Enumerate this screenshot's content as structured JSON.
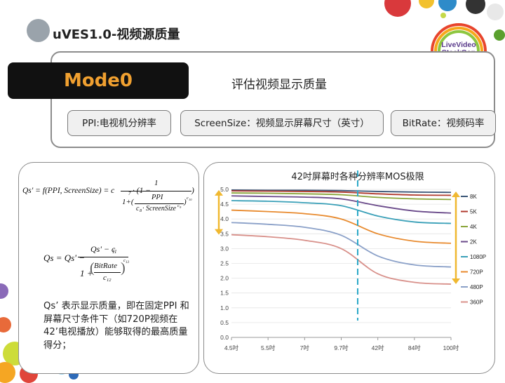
{
  "slide": {
    "title": "uVES1.0-视频源质量"
  },
  "mode": {
    "label": "Mode0",
    "description": "评估视频显示质量"
  },
  "tags": [
    {
      "text": "PPI:电视机分辨率"
    },
    {
      "text": "ScreenSize：视频显示屏幕尺寸（英寸）"
    },
    {
      "text": "BitRate：视频码率"
    }
  ],
  "formula1": {
    "lhs": "Qs' = f(PPI, ScreenSize) = c",
    "lhs_sub": "7",
    "mult": " · (1 −",
    "num": "1",
    "inner_num": "PPI",
    "inner_den_c": "c",
    "inner_den_sub": "8",
    "inner_den_rest": " · ScreenSize",
    "inner_den_sup": "c",
    "inner_den_sup_sub": "9",
    "one_plus": "1+(",
    "close_inner": ")",
    "outer_sup": "c",
    "outer_sup_sub": "10",
    "close": ")"
  },
  "formula2": {
    "lhs": "Qs = Qs' −",
    "num": "Qs' − c",
    "num_sub": "11",
    "den_one": "1 +",
    "frac_num": "BitRate",
    "frac_den": "c",
    "frac_den_sub": "12",
    "sup": "c",
    "sup_sub": "13"
  },
  "description": "Qs’  表示显示质量，即在固定PPI 和屏幕尺寸条件下（如720P视频在42’电视播放）能够取得的最高质量得分；",
  "chart_data": {
    "type": "line",
    "title": "42吋屏幕时各种分辨率MOS极限",
    "x_categories": [
      "4.5吋",
      "5.5吋",
      "7吋",
      "9.7吋",
      "42吋",
      "84吋",
      "100吋"
    ],
    "y_ticks": [
      0.0,
      0.5,
      1.0,
      1.5,
      2.0,
      2.5,
      3.0,
      3.5,
      4.0,
      4.5,
      5.0
    ],
    "ylim": [
      0,
      5
    ],
    "series": [
      {
        "name": "8K",
        "color": "#3a5577",
        "values": [
          4.98,
          4.97,
          4.97,
          4.96,
          4.93,
          4.91,
          4.9
        ]
      },
      {
        "name": "5K",
        "color": "#b03a2e",
        "values": [
          4.95,
          4.94,
          4.93,
          4.91,
          4.85,
          4.81,
          4.8
        ]
      },
      {
        "name": "4K",
        "color": "#8aa53a",
        "values": [
          4.88,
          4.87,
          4.85,
          4.82,
          4.73,
          4.68,
          4.66
        ]
      },
      {
        "name": "2K",
        "color": "#6a4a8a",
        "values": [
          4.78,
          4.76,
          4.74,
          4.68,
          4.45,
          4.27,
          4.2
        ]
      },
      {
        "name": "1080P",
        "color": "#3aa0b8",
        "values": [
          4.62,
          4.6,
          4.55,
          4.45,
          4.1,
          3.9,
          3.85
        ]
      },
      {
        "name": "720P",
        "color": "#e88a2e",
        "values": [
          4.3,
          4.25,
          4.18,
          4.0,
          3.5,
          3.25,
          3.18
        ]
      },
      {
        "name": "480P",
        "color": "#8aa0c8",
        "values": [
          3.88,
          3.82,
          3.72,
          3.45,
          2.75,
          2.45,
          2.38
        ]
      },
      {
        "name": "360P",
        "color": "#d8908a",
        "values": [
          3.47,
          3.4,
          3.28,
          3.0,
          2.15,
          1.86,
          1.8
        ]
      }
    ],
    "marker_x_category": "42吋",
    "annotation_color": "#f0b830"
  }
}
